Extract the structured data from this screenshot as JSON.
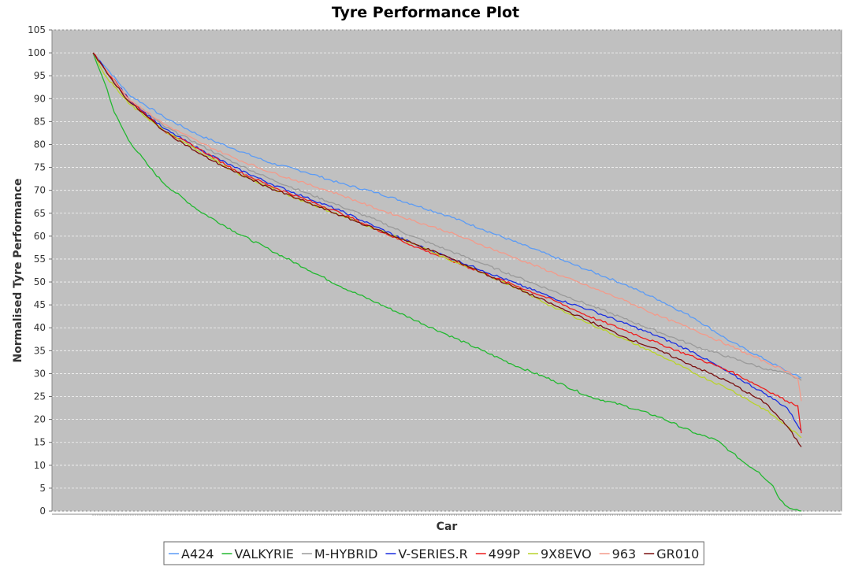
{
  "chart_data": {
    "type": "line",
    "title": "Tyre Performance Plot",
    "xlabel": "Car",
    "ylabel": "Normalised Tyre Performance",
    "ylim": [
      0,
      105
    ],
    "yticks": [
      0,
      5,
      10,
      15,
      20,
      25,
      30,
      35,
      40,
      45,
      50,
      55,
      60,
      65,
      70,
      75,
      80,
      85,
      90,
      95,
      100,
      105
    ],
    "x_range": [
      0,
      100
    ],
    "grid": true,
    "plot_background": "#c0c0c0",
    "legend_position": "bottom",
    "series": [
      {
        "name": "A424",
        "color": "#5b9bf5",
        "x": [
          0,
          2,
          5,
          10,
          15,
          20,
          25,
          30,
          35,
          40,
          45,
          50,
          55,
          60,
          65,
          70,
          75,
          80,
          85,
          90,
          95,
          98,
          100
        ],
        "y": [
          100,
          96.5,
          91,
          86,
          82,
          79,
          76,
          74,
          71.5,
          69.5,
          67,
          64.5,
          61.5,
          58.5,
          55.5,
          52.5,
          49.5,
          46,
          42,
          37,
          33,
          30.5,
          29
        ]
      },
      {
        "name": "VALKYRIE",
        "color": "#22b830",
        "x": [
          0,
          1,
          2,
          3,
          5,
          8,
          10,
          15,
          20,
          25,
          30,
          35,
          40,
          45,
          50,
          55,
          60,
          65,
          70,
          75,
          80,
          85,
          88,
          90,
          92,
          94,
          96,
          97,
          98,
          100
        ],
        "y": [
          100,
          96,
          92,
          87,
          81,
          75,
          71.5,
          65.5,
          61,
          57,
          53,
          49,
          45.5,
          42,
          38.5,
          35,
          31.5,
          28.5,
          25,
          23,
          20.5,
          17,
          15.5,
          13,
          10.5,
          8.5,
          5.5,
          2.5,
          1,
          0
        ]
      },
      {
        "name": "M-HYBRID",
        "color": "#9a9a9a",
        "x": [
          0,
          2,
          5,
          10,
          15,
          20,
          25,
          30,
          35,
          40,
          45,
          50,
          55,
          60,
          65,
          70,
          75,
          80,
          85,
          90,
          95,
          98,
          100
        ],
        "y": [
          100,
          95.5,
          90,
          84,
          80,
          76,
          72.5,
          69.5,
          66.5,
          63.5,
          60,
          57,
          54,
          51,
          48,
          45,
          42,
          39,
          36,
          33.5,
          31,
          30,
          28.5
        ]
      },
      {
        "name": "V-SERIES.R",
        "color": "#1a2ee0",
        "x": [
          0,
          2,
          5,
          10,
          15,
          20,
          25,
          30,
          35,
          40,
          45,
          50,
          55,
          60,
          65,
          70,
          75,
          80,
          85,
          90,
          95,
          98,
          100
        ],
        "y": [
          100,
          96,
          90,
          83.5,
          79,
          75,
          71.5,
          68.5,
          65.5,
          62,
          58.5,
          55.5,
          52.5,
          49.5,
          46.5,
          44,
          41,
          38,
          34.5,
          30,
          25.5,
          22.5,
          17.5
        ]
      },
      {
        "name": "499P",
        "color": "#ee1c1c",
        "x": [
          0,
          2,
          5,
          10,
          15,
          20,
          25,
          30,
          35,
          40,
          45,
          50,
          55,
          60,
          65,
          70,
          75,
          80,
          85,
          90,
          95,
          98,
          99.5,
          100
        ],
        "y": [
          100,
          96,
          90,
          83,
          79,
          74.5,
          71,
          68,
          65,
          61.5,
          58,
          55,
          52,
          49,
          46,
          42.5,
          39.5,
          36.5,
          33.5,
          30.5,
          26.5,
          24,
          23,
          17
        ]
      },
      {
        "name": "9X8EVO",
        "color": "#b9d32a",
        "x": [
          0,
          1,
          2,
          5,
          10,
          15,
          20,
          25,
          30,
          35,
          40,
          45,
          50,
          55,
          60,
          65,
          70,
          75,
          80,
          85,
          90,
          95,
          98,
          100
        ],
        "y": [
          100,
          97,
          94.5,
          89,
          83,
          78.5,
          74,
          70.5,
          67.5,
          64.5,
          61.5,
          58.5,
          55,
          52,
          48.5,
          44.5,
          41,
          37.5,
          34,
          30,
          26.5,
          22,
          18.5,
          16
        ]
      },
      {
        "name": "963",
        "color": "#f39a8a",
        "x": [
          0,
          2,
          5,
          10,
          15,
          20,
          25,
          30,
          35,
          40,
          45,
          50,
          55,
          60,
          65,
          70,
          75,
          80,
          85,
          90,
          95,
          98,
          99.5,
          100
        ],
        "y": [
          100,
          96,
          90,
          84.5,
          80.5,
          77,
          74,
          71.5,
          69,
          66,
          63.5,
          61,
          58,
          55,
          52,
          49,
          46,
          42.5,
          39.5,
          36,
          32.5,
          30.5,
          29,
          24
        ]
      },
      {
        "name": "GR010",
        "color": "#7a1010",
        "x": [
          0,
          2,
          5,
          10,
          15,
          20,
          25,
          30,
          35,
          40,
          45,
          50,
          55,
          60,
          65,
          70,
          75,
          80,
          85,
          90,
          95,
          98,
          100
        ],
        "y": [
          100,
          95.5,
          89.5,
          83,
          78,
          74,
          70.5,
          67.5,
          64.5,
          61.5,
          58.5,
          55.5,
          52,
          48.5,
          45,
          41.5,
          38,
          35,
          31.5,
          28,
          23.5,
          18.5,
          14
        ]
      }
    ]
  }
}
